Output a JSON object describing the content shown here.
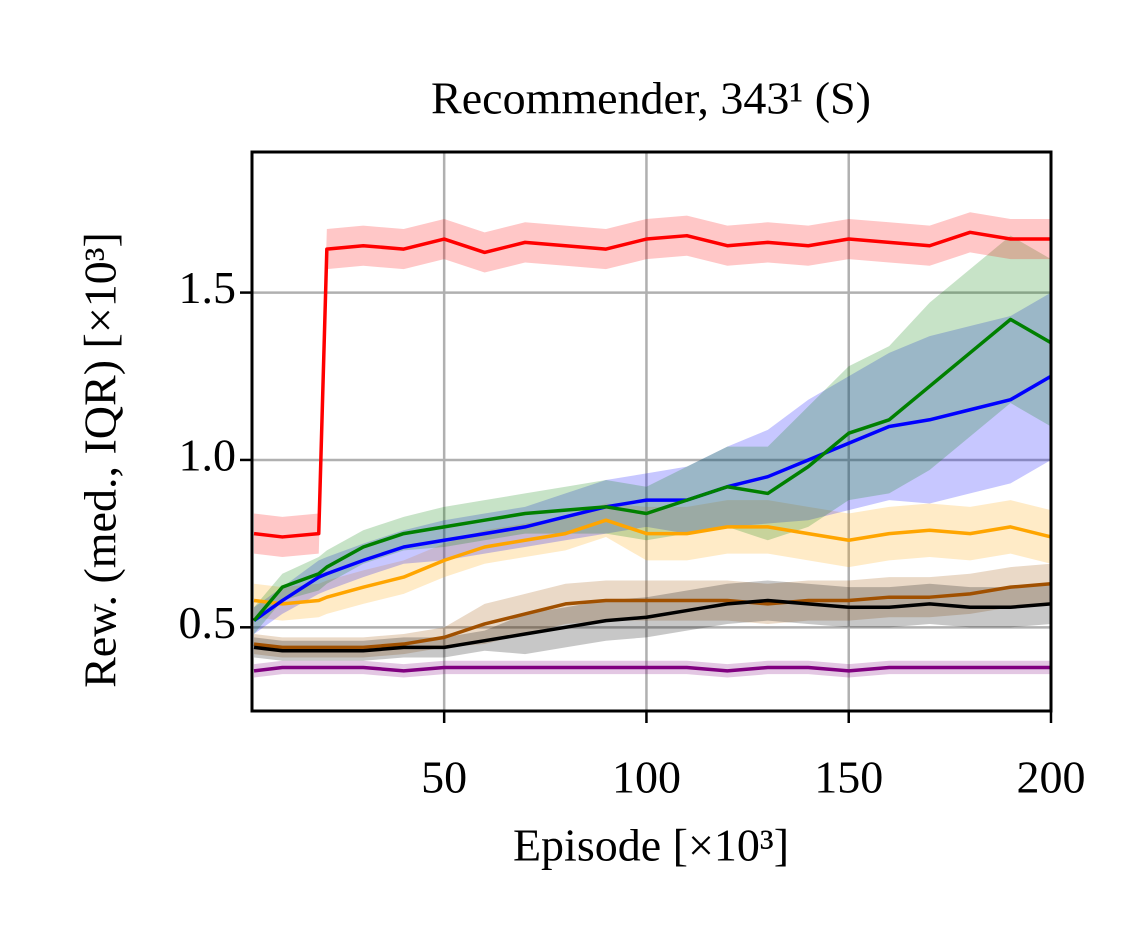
{
  "chart_data": {
    "type": "line",
    "title": "Recommender, 343¹ (S)",
    "x_label": "Episode [×10³]",
    "y_label": "Rew. (med., IQR) [×10³]",
    "xlim": [
      2.5,
      200
    ],
    "ylim": [
      0.25,
      1.92
    ],
    "xticks": [
      50,
      100,
      150,
      200
    ],
    "yticks": [
      0.5,
      {
        "value": 1,
        "label": "1.0"
      },
      1.5
    ],
    "grid": true,
    "x": [
      3,
      10,
      19,
      21,
      30,
      40,
      50,
      60,
      70,
      80,
      90,
      100,
      110,
      120,
      130,
      140,
      150,
      160,
      170,
      180,
      190,
      200
    ],
    "series": [
      {
        "color": "#800080",
        "values": [
          0.37,
          0.38,
          0.38,
          0.38,
          0.38,
          0.37,
          0.38,
          0.38,
          0.38,
          0.38,
          0.38,
          0.38,
          0.38,
          0.37,
          0.38,
          0.38,
          0.37,
          0.38,
          0.38,
          0.38,
          0.38,
          0.38
        ],
        "lower": [
          0.35,
          0.36,
          0.36,
          0.36,
          0.36,
          0.35,
          0.36,
          0.36,
          0.36,
          0.36,
          0.36,
          0.36,
          0.36,
          0.35,
          0.36,
          0.36,
          0.35,
          0.36,
          0.36,
          0.36,
          0.36,
          0.36
        ],
        "upper": [
          0.39,
          0.4,
          0.4,
          0.4,
          0.4,
          0.39,
          0.4,
          0.4,
          0.4,
          0.4,
          0.4,
          0.4,
          0.4,
          0.39,
          0.4,
          0.4,
          0.39,
          0.4,
          0.4,
          0.4,
          0.4,
          0.4
        ]
      },
      {
        "color": "#a05000",
        "values": [
          0.45,
          0.44,
          0.44,
          0.44,
          0.44,
          0.45,
          0.47,
          0.51,
          0.54,
          0.57,
          0.58,
          0.58,
          0.58,
          0.58,
          0.57,
          0.58,
          0.58,
          0.59,
          0.59,
          0.6,
          0.62,
          0.63
        ],
        "lower": [
          0.42,
          0.41,
          0.41,
          0.41,
          0.41,
          0.42,
          0.44,
          0.45,
          0.48,
          0.51,
          0.52,
          0.52,
          0.52,
          0.52,
          0.51,
          0.52,
          0.52,
          0.53,
          0.53,
          0.54,
          0.56,
          0.57
        ],
        "upper": [
          0.48,
          0.47,
          0.47,
          0.47,
          0.47,
          0.48,
          0.5,
          0.57,
          0.6,
          0.63,
          0.64,
          0.64,
          0.64,
          0.64,
          0.63,
          0.64,
          0.64,
          0.65,
          0.65,
          0.66,
          0.68,
          0.69
        ]
      },
      {
        "color": "#000000",
        "values": [
          0.44,
          0.43,
          0.43,
          0.43,
          0.43,
          0.44,
          0.44,
          0.46,
          0.48,
          0.5,
          0.52,
          0.53,
          0.55,
          0.57,
          0.58,
          0.57,
          0.56,
          0.56,
          0.57,
          0.56,
          0.56,
          0.57
        ],
        "lower": [
          0.41,
          0.4,
          0.4,
          0.4,
          0.4,
          0.41,
          0.41,
          0.43,
          0.42,
          0.44,
          0.46,
          0.47,
          0.49,
          0.51,
          0.52,
          0.51,
          0.5,
          0.5,
          0.51,
          0.5,
          0.5,
          0.51
        ],
        "upper": [
          0.47,
          0.46,
          0.46,
          0.46,
          0.46,
          0.47,
          0.47,
          0.49,
          0.54,
          0.56,
          0.58,
          0.59,
          0.61,
          0.63,
          0.64,
          0.63,
          0.62,
          0.62,
          0.63,
          0.62,
          0.62,
          0.63
        ]
      },
      {
        "color": "#ffa500",
        "values": [
          0.58,
          0.57,
          0.58,
          0.59,
          0.62,
          0.65,
          0.7,
          0.74,
          0.76,
          0.78,
          0.82,
          0.78,
          0.78,
          0.8,
          0.8,
          0.78,
          0.76,
          0.78,
          0.79,
          0.78,
          0.8,
          0.77
        ],
        "lower": [
          0.53,
          0.52,
          0.53,
          0.54,
          0.57,
          0.6,
          0.65,
          0.69,
          0.71,
          0.73,
          0.77,
          0.7,
          0.7,
          0.72,
          0.72,
          0.7,
          0.68,
          0.7,
          0.71,
          0.7,
          0.72,
          0.69
        ],
        "upper": [
          0.63,
          0.62,
          0.63,
          0.64,
          0.67,
          0.7,
          0.75,
          0.79,
          0.81,
          0.83,
          0.87,
          0.86,
          0.86,
          0.88,
          0.88,
          0.86,
          0.84,
          0.86,
          0.87,
          0.86,
          0.88,
          0.85
        ]
      },
      {
        "color": "#0000ff",
        "values": [
          0.52,
          0.58,
          0.65,
          0.66,
          0.7,
          0.74,
          0.76,
          0.78,
          0.8,
          0.83,
          0.86,
          0.88,
          0.88,
          0.92,
          0.95,
          1.0,
          1.05,
          1.1,
          1.12,
          1.15,
          1.18,
          1.25
        ],
        "lower": [
          0.48,
          0.54,
          0.6,
          0.61,
          0.65,
          0.69,
          0.7,
          0.72,
          0.74,
          0.76,
          0.78,
          0.8,
          0.78,
          0.8,
          0.81,
          0.82,
          0.85,
          0.88,
          0.87,
          0.9,
          0.93,
          1.0
        ],
        "upper": [
          0.56,
          0.62,
          0.7,
          0.71,
          0.75,
          0.79,
          0.82,
          0.84,
          0.86,
          0.9,
          0.94,
          0.96,
          0.98,
          1.04,
          1.09,
          1.18,
          1.25,
          1.32,
          1.37,
          1.4,
          1.43,
          1.5
        ]
      },
      {
        "color": "#008000",
        "values": [
          0.52,
          0.62,
          0.66,
          0.68,
          0.74,
          0.78,
          0.8,
          0.82,
          0.84,
          0.85,
          0.86,
          0.84,
          0.88,
          0.92,
          0.9,
          0.98,
          1.08,
          1.12,
          1.22,
          1.32,
          1.42,
          1.35
        ],
        "lower": [
          0.48,
          0.58,
          0.61,
          0.63,
          0.69,
          0.73,
          0.74,
          0.76,
          0.78,
          0.78,
          0.78,
          0.76,
          0.78,
          0.8,
          0.76,
          0.8,
          0.88,
          0.9,
          0.97,
          1.07,
          1.17,
          1.1
        ],
        "upper": [
          0.56,
          0.66,
          0.71,
          0.73,
          0.79,
          0.83,
          0.86,
          0.88,
          0.9,
          0.92,
          0.94,
          0.92,
          0.98,
          1.04,
          1.04,
          1.16,
          1.28,
          1.34,
          1.47,
          1.57,
          1.67,
          1.6
        ]
      },
      {
        "color": "#ff0000",
        "values": [
          0.78,
          0.77,
          0.78,
          1.63,
          1.64,
          1.63,
          1.66,
          1.62,
          1.65,
          1.64,
          1.63,
          1.66,
          1.67,
          1.64,
          1.65,
          1.64,
          1.66,
          1.65,
          1.64,
          1.68,
          1.66,
          1.66
        ],
        "lower": [
          0.72,
          0.71,
          0.72,
          1.57,
          1.58,
          1.57,
          1.6,
          1.56,
          1.59,
          1.58,
          1.57,
          1.6,
          1.61,
          1.58,
          1.59,
          1.58,
          1.6,
          1.59,
          1.58,
          1.62,
          1.6,
          1.6
        ],
        "upper": [
          0.84,
          0.83,
          0.84,
          1.69,
          1.7,
          1.69,
          1.72,
          1.68,
          1.71,
          1.7,
          1.69,
          1.72,
          1.73,
          1.7,
          1.71,
          1.7,
          1.72,
          1.71,
          1.7,
          1.74,
          1.72,
          1.72
        ]
      }
    ]
  }
}
